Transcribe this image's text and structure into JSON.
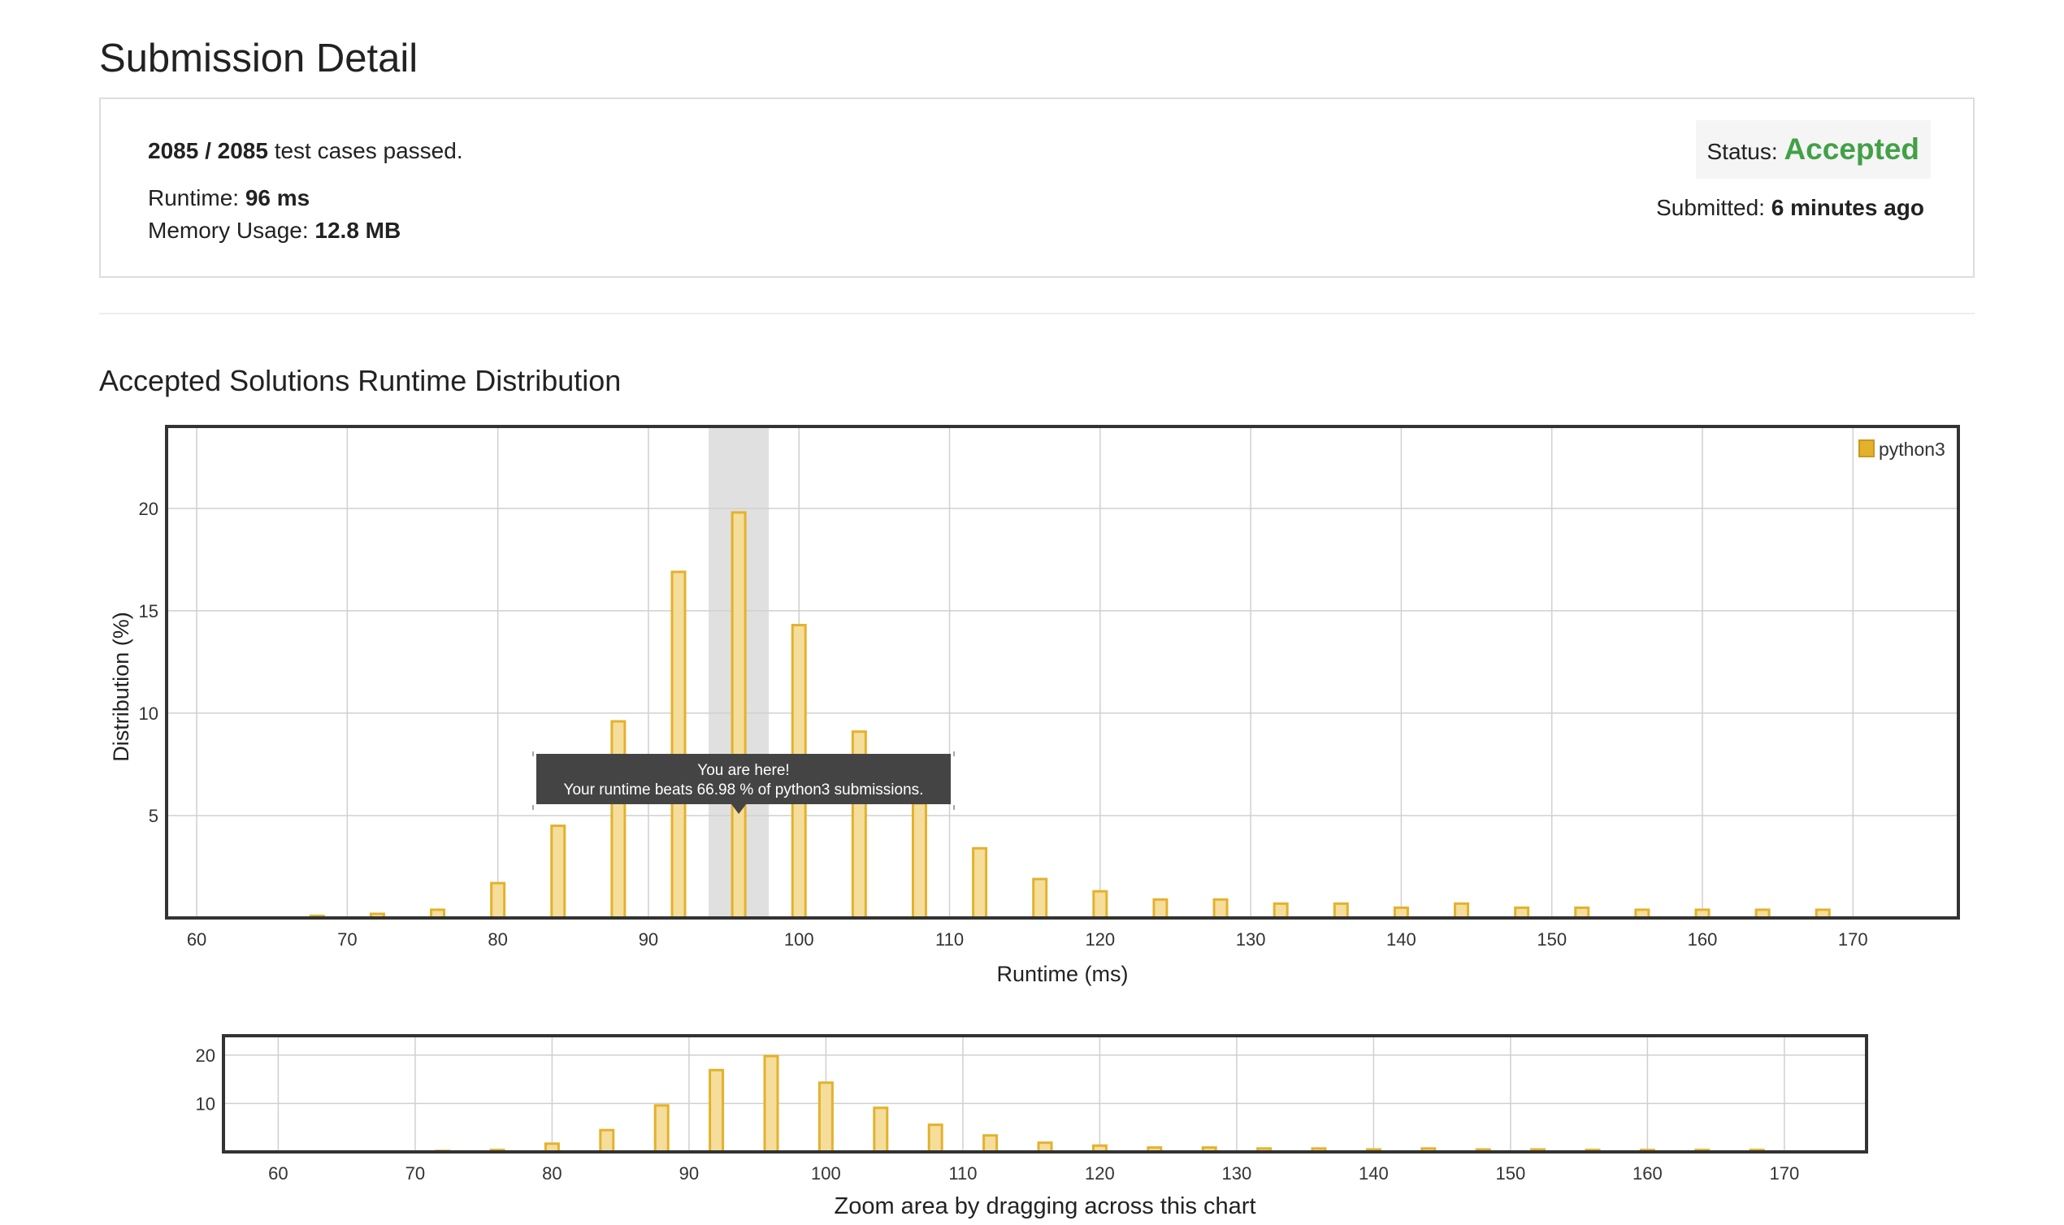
{
  "page": {
    "title": "Submission Detail"
  },
  "submission": {
    "passed": "2085 / 2085",
    "passed_suffix": " test cases passed.",
    "runtime_label": "Runtime: ",
    "runtime_value": "96 ms",
    "memory_label": "Memory Usage: ",
    "memory_value": "12.8 MB",
    "status_label": "Status: ",
    "status_value": "Accepted",
    "submitted_label": "Submitted: ",
    "submitted_value": "6 minutes ago"
  },
  "section": {
    "title": "Accepted Solutions Runtime Distribution"
  },
  "tooltip": {
    "line1": "You are here!",
    "line2": "Your runtime beats 66.98 % of python3 submissions."
  },
  "colors": {
    "bar_fill": "#f5dd9b",
    "bar_stroke": "#e3b22d",
    "accepted": "#43a047",
    "highlight": "#e0e0e0",
    "tooltip_bg": "#444444"
  },
  "chart_data": [
    {
      "type": "bar",
      "title": "",
      "xlabel": "Runtime (ms)",
      "ylabel": "Distribution (%)",
      "xlim": [
        58,
        177
      ],
      "ylim": [
        0,
        24
      ],
      "xticks": [
        60,
        70,
        80,
        90,
        100,
        110,
        120,
        130,
        140,
        150,
        160,
        170
      ],
      "yticks": [
        5,
        10,
        15,
        20
      ],
      "grid": true,
      "legend": "top-right",
      "highlight_x": 96,
      "series": [
        {
          "name": "python3",
          "x": [
            68,
            72,
            76,
            80,
            84,
            88,
            92,
            96,
            100,
            104,
            108,
            112,
            116,
            120,
            124,
            128,
            132,
            136,
            140,
            144,
            148,
            152,
            156,
            160,
            164,
            168
          ],
          "values": [
            0.1,
            0.2,
            0.4,
            1.7,
            4.5,
            9.6,
            16.9,
            19.8,
            14.3,
            9.1,
            5.6,
            3.4,
            1.9,
            1.3,
            0.9,
            0.9,
            0.7,
            0.7,
            0.5,
            0.7,
            0.5,
            0.5,
            0.4,
            0.4,
            0.4,
            0.4
          ]
        }
      ]
    },
    {
      "type": "bar",
      "title": "",
      "xlabel": "Zoom area by dragging across this chart",
      "ylabel": "",
      "xlim": [
        56,
        176
      ],
      "ylim": [
        0,
        24
      ],
      "xticks": [
        60,
        70,
        80,
        90,
        100,
        110,
        120,
        130,
        140,
        150,
        160,
        170
      ],
      "yticks": [
        10,
        20
      ],
      "grid": true,
      "series": [
        {
          "name": "python3",
          "x": [
            68,
            72,
            76,
            80,
            84,
            88,
            92,
            96,
            100,
            104,
            108,
            112,
            116,
            120,
            124,
            128,
            132,
            136,
            140,
            144,
            148,
            152,
            156,
            160,
            164,
            168
          ],
          "values": [
            0.1,
            0.2,
            0.4,
            1.7,
            4.5,
            9.6,
            16.9,
            19.8,
            14.3,
            9.1,
            5.6,
            3.4,
            1.9,
            1.3,
            0.9,
            0.9,
            0.7,
            0.7,
            0.5,
            0.7,
            0.5,
            0.5,
            0.4,
            0.4,
            0.4,
            0.4
          ]
        }
      ]
    }
  ]
}
